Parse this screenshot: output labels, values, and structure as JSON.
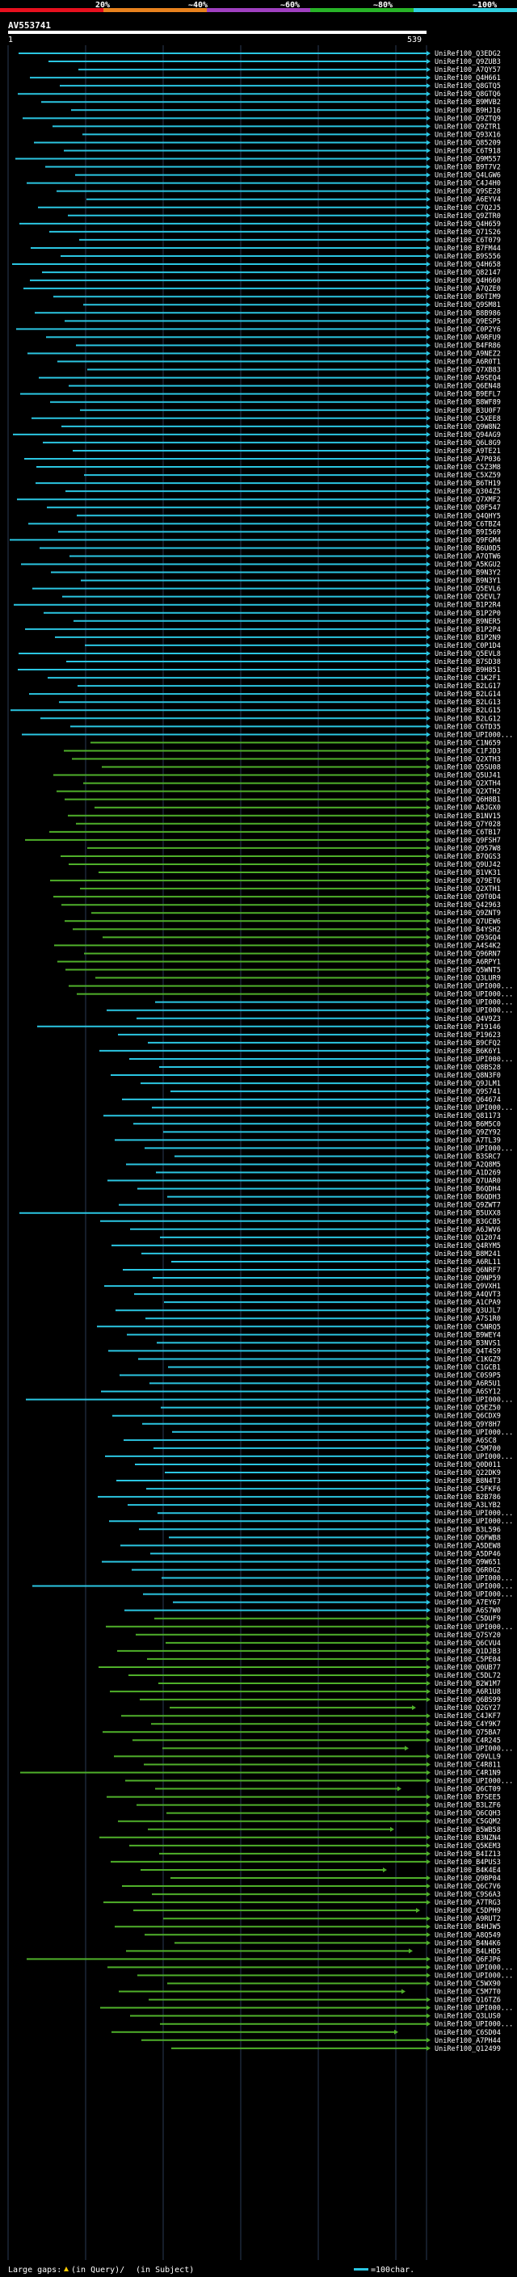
{
  "query_name": "AV553741",
  "query_start": "1",
  "query_end": "539",
  "scale_labels": [
    "20%",
    "~40%",
    "~60%",
    "~80%",
    "~100%"
  ],
  "scale_colors": [
    "#e8101e",
    "#e8821e",
    "#a040c0",
    "#28b428",
    "#30d0e0"
  ],
  "colors": {
    "cyan": "#2bc6e2",
    "green": "#4fb02a",
    "white": "#ffffff",
    "grid": "#2a3a55"
  },
  "subject_ids": [
    "UniRef100_Q3EDG2",
    "UniRef100_Q9ZUB3",
    "UniRef100_A7QY57",
    "UniRef100_Q4H661",
    "UniRef100_Q8GTQ5",
    "UniRef100_Q8GTQ6",
    "UniRef100_B9MVB2",
    "UniRef100_B9HJ16",
    "UniRef100_Q9ZTQ9",
    "UniRef100_Q9ZTR1",
    "UniRef100_Q93X16",
    "UniRef100_Q85209",
    "UniRef100_C6T918",
    "UniRef100_Q9M557",
    "UniRef100_B9T7V2",
    "UniRef100_Q4LGW6",
    "UniRef100_C4J4H0",
    "UniRef100_Q9SE28",
    "UniRef100_A6EYV4",
    "UniRef100_C7Q2J5",
    "UniRef100_Q9ZTR0",
    "UniRef100_Q4H659",
    "UniRef100_Q71S26",
    "UniRef100_C6T079",
    "UniRef100_B7FM44",
    "UniRef100_B9S556",
    "UniRef100_Q4H658",
    "UniRef100_Q82147",
    "UniRef100_Q4H660",
    "UniRef100_A7QZE0",
    "UniRef100_B6TIM9",
    "UniRef100_Q9SM81",
    "UniRef100_B8B986",
    "UniRef100_Q9ESP5",
    "UniRef100_C0P2Y6",
    "UniRef100_A9RFU9",
    "UniRef100_B4FR86",
    "UniRef100_A9NEZ2",
    "UniRef100_A6R0T1",
    "UniRef100_Q7XB83",
    "UniRef100_A9SEQ4",
    "UniRef100_Q6EN48",
    "UniRef100_B9EFL7",
    "UniRef100_B8WF89",
    "UniRef100_B3U0F7",
    "UniRef100_C5XEE8",
    "UniRef100_Q9W8N2",
    "UniRef100_Q94AG9",
    "UniRef100_Q6L8G9",
    "UniRef100_A9TE21",
    "UniRef100_A7P036",
    "UniRef100_C5Z3M8",
    "UniRef100_C5XZ59",
    "UniRef100_B6TH19",
    "UniRef100_Q304Z5",
    "UniRef100_Q7XMF2",
    "UniRef100_Q8F547",
    "UniRef100_Q4QHY5",
    "UniRef100_C6TBZ4",
    "UniRef100_B9I569",
    "UniRef100_Q9FGM4",
    "UniRef100_B6U0D5",
    "UniRef100_A7QTW6",
    "UniRef100_A5KGU2",
    "UniRef100_B9N3Y2",
    "UniRef100_B9N3Y1",
    "UniRef100_Q5EVL6",
    "UniRef100_Q5EVL7",
    "UniRef100_B1P2R4",
    "UniRef100_B1P2P0",
    "UniRef100_B9NER5",
    "UniRef100_B1P2P4",
    "UniRef100_B1P2N9",
    "UniRef100_C0P1D4",
    "UniRef100_Q5EVL8",
    "UniRef100_B7SD38",
    "UniRef100_B9H851",
    "UniRef100_C1K2F1",
    "UniRef100_B2LG17",
    "UniRef100_B2LG14",
    "UniRef100_B2LG13",
    "UniRef100_B2LG15",
    "UniRef100_B2LG12",
    "UniRef100_C6TD35",
    "UniRef100_UPI000...",
    "UniRef100_C1N659",
    "UniRef100_C1FJD3",
    "UniRef100_Q2XTH3",
    "UniRef100_Q5SU08",
    "UniRef100_Q5UJ41",
    "UniRef100_Q2XTH4",
    "UniRef100_Q2XTH2",
    "UniRef100_Q6H8B1",
    "UniRef100_A8JGX0",
    "UniRef100_B1NV15",
    "UniRef100_Q7Y028",
    "UniRef100_C6TB17",
    "UniRef100_Q9FSH7",
    "UniRef100_Q957W8",
    "UniRef100_B7QGS3",
    "UniRef100_Q9UJ42",
    "UniRef100_B1VK31",
    "UniRef100_Q79ET6",
    "UniRef100_Q2XTH1",
    "UniRef100_Q9T0D4",
    "UniRef100_Q42963",
    "UniRef100_Q9ZNT9",
    "UniRef100_Q7UEW6",
    "UniRef100_B4YSH2",
    "UniRef100_Q93GQ4",
    "UniRef100_A4S4K2",
    "UniRef100_Q96RN7",
    "UniRef100_A6RPY1",
    "UniRef100_Q5WNT5",
    "UniRef100_Q3LUR9",
    "UniRef100_UPI000...",
    "UniRef100_UPI000...",
    "UniRef100_UPI000...",
    "UniRef100_UPI000...",
    "UniRef100_Q4V9Z3",
    "UniRef100_P19146",
    "UniRef100_P19623",
    "UniRef100_B9CFQ2",
    "UniRef100_B6K6Y1",
    "UniRef100_UPI000...",
    "UniRef100_Q8BS28",
    "UniRef100_Q8N3F0",
    "UniRef100_Q9JLM1",
    "UniRef100_Q9S741",
    "UniRef100_Q64674",
    "UniRef100_UPI000...",
    "UniRef100_Q81173",
    "UniRef100_B6M5C0",
    "UniRef100_Q9ZY92",
    "UniRef100_A7TL39",
    "UniRef100_UPI000...",
    "UniRef100_B3SRC7",
    "UniRef100_A2Q8M5",
    "UniRef100_A1D269",
    "UniRef100_Q7UAR0",
    "UniRef100_B6QDH4",
    "UniRef100_B6QDH3",
    "UniRef100_Q9ZWT7",
    "UniRef100_B5UXX8",
    "UniRef100_B3GCB5",
    "UniRef100_A6JWV6",
    "UniRef100_Q12074",
    "UniRef100_Q4RYM5",
    "UniRef100_B8M241",
    "UniRef100_A6RL11",
    "UniRef100_Q6NRF7",
    "UniRef100_Q9NP59",
    "UniRef100_Q9VXH1",
    "UniRef100_A4QVT3",
    "UniRef100_A1CPA9",
    "UniRef100_Q3UJL7",
    "UniRef100_A7S1R0",
    "UniRef100_C5NRQ5",
    "UniRef100_B9WEY4",
    "UniRef100_B3NVS1",
    "UniRef100_Q4T4S9",
    "UniRef100_C1KGZ9",
    "UniRef100_C1GCB1",
    "UniRef100_C0S9P5",
    "UniRef100_A6R5U1",
    "UniRef100_A6SY12",
    "UniRef100_UPI000...",
    "UniRef100_Q5EZ50",
    "UniRef100_Q6CDX9",
    "UniRef100_Q9Y8H7",
    "UniRef100_UPI000...",
    "UniRef100_A6SC8",
    "UniRef100_C5M700",
    "UniRef100_UPI000...",
    "UniRef100_Q0D011",
    "UniRef100_Q22DK9",
    "UniRef100_B8N4T3",
    "UniRef100_C5FKF6",
    "UniRef100_B2B786",
    "UniRef100_A3LYB2",
    "UniRef100_UPI000...",
    "UniRef100_UPI000...",
    "UniRef100_B3L596",
    "UniRef100_Q6FWB8",
    "UniRef100_A5DEW8",
    "UniRef100_A5DP46",
    "UniRef100_Q9W651",
    "UniRef100_Q6R0G2",
    "UniRef100_UPI000...",
    "UniRef100_UPI000...",
    "UniRef100_UPI000...",
    "UniRef100_A7EY67",
    "UniRef100_A6S7W0",
    "UniRef100_C5DUF9",
    "UniRef100_UPI000...",
    "UniRef100_Q7SY20",
    "UniRef100_Q6CVU4",
    "UniRef100_Q1DJB3",
    "UniRef100_C5PE04",
    "UniRef100_Q0UB77",
    "UniRef100_C5DL72",
    "UniRef100_B2W1M7",
    "UniRef100_A6R1U8",
    "UniRef100_Q6BS99",
    "UniRef100_Q2GY27",
    "UniRef100_C4JKF7",
    "UniRef100_C4Y9K7",
    "UniRef100_Q75BA7",
    "UniRef100_C4R245",
    "UniRef100_UPI000...",
    "UniRef100_Q9VLL9",
    "UniRef100_C4R811",
    "UniRef100_C4R1N9",
    "UniRef100_UPI000...",
    "UniRef100_Q6CT09",
    "UniRef100_B7SEE5",
    "UniRef100_B3LZF6",
    "UniRef100_Q6CQH3",
    "UniRef100_C5GQM2",
    "UniRef100_B5WB58",
    "UniRef100_B3NZN4",
    "UniRef100_Q5KEM3",
    "UniRef100_B4IZ13",
    "UniRef100_B4PUS3",
    "UniRef100_B4K4E4",
    "UniRef100_Q9BP04",
    "UniRef100_Q6C7V6",
    "UniRef100_C9S6A3",
    "UniRef100_A7TRG3",
    "UniRef100_C5DPH9",
    "UniRef100_A9RUT2",
    "UniRef100_B4HJW5",
    "UniRef100_A8Q549",
    "UniRef100_B4N4K6",
    "UniRef100_B4LHD5",
    "UniRef100_Q6FJP6",
    "UniRef100_UPI000...",
    "UniRef100_UPI000...",
    "UniRef100_C5WX90",
    "UniRef100_C5M7T0",
    "UniRef100_Q16TZ6",
    "UniRef100_UPI000...",
    "UniRef100_Q3LUS0",
    "UniRef100_UPI000...",
    "UniRef100_C6SD04",
    "UniRef100_A7PH44",
    "UniRef100_Q12499"
  ],
  "legend": {
    "large_gaps_label": "Large gaps:",
    "gap_in_query_label": "(in Query)/",
    "gap_in_subject_label": "(in Subject)",
    "scale_bar_label": "=100char."
  }
}
